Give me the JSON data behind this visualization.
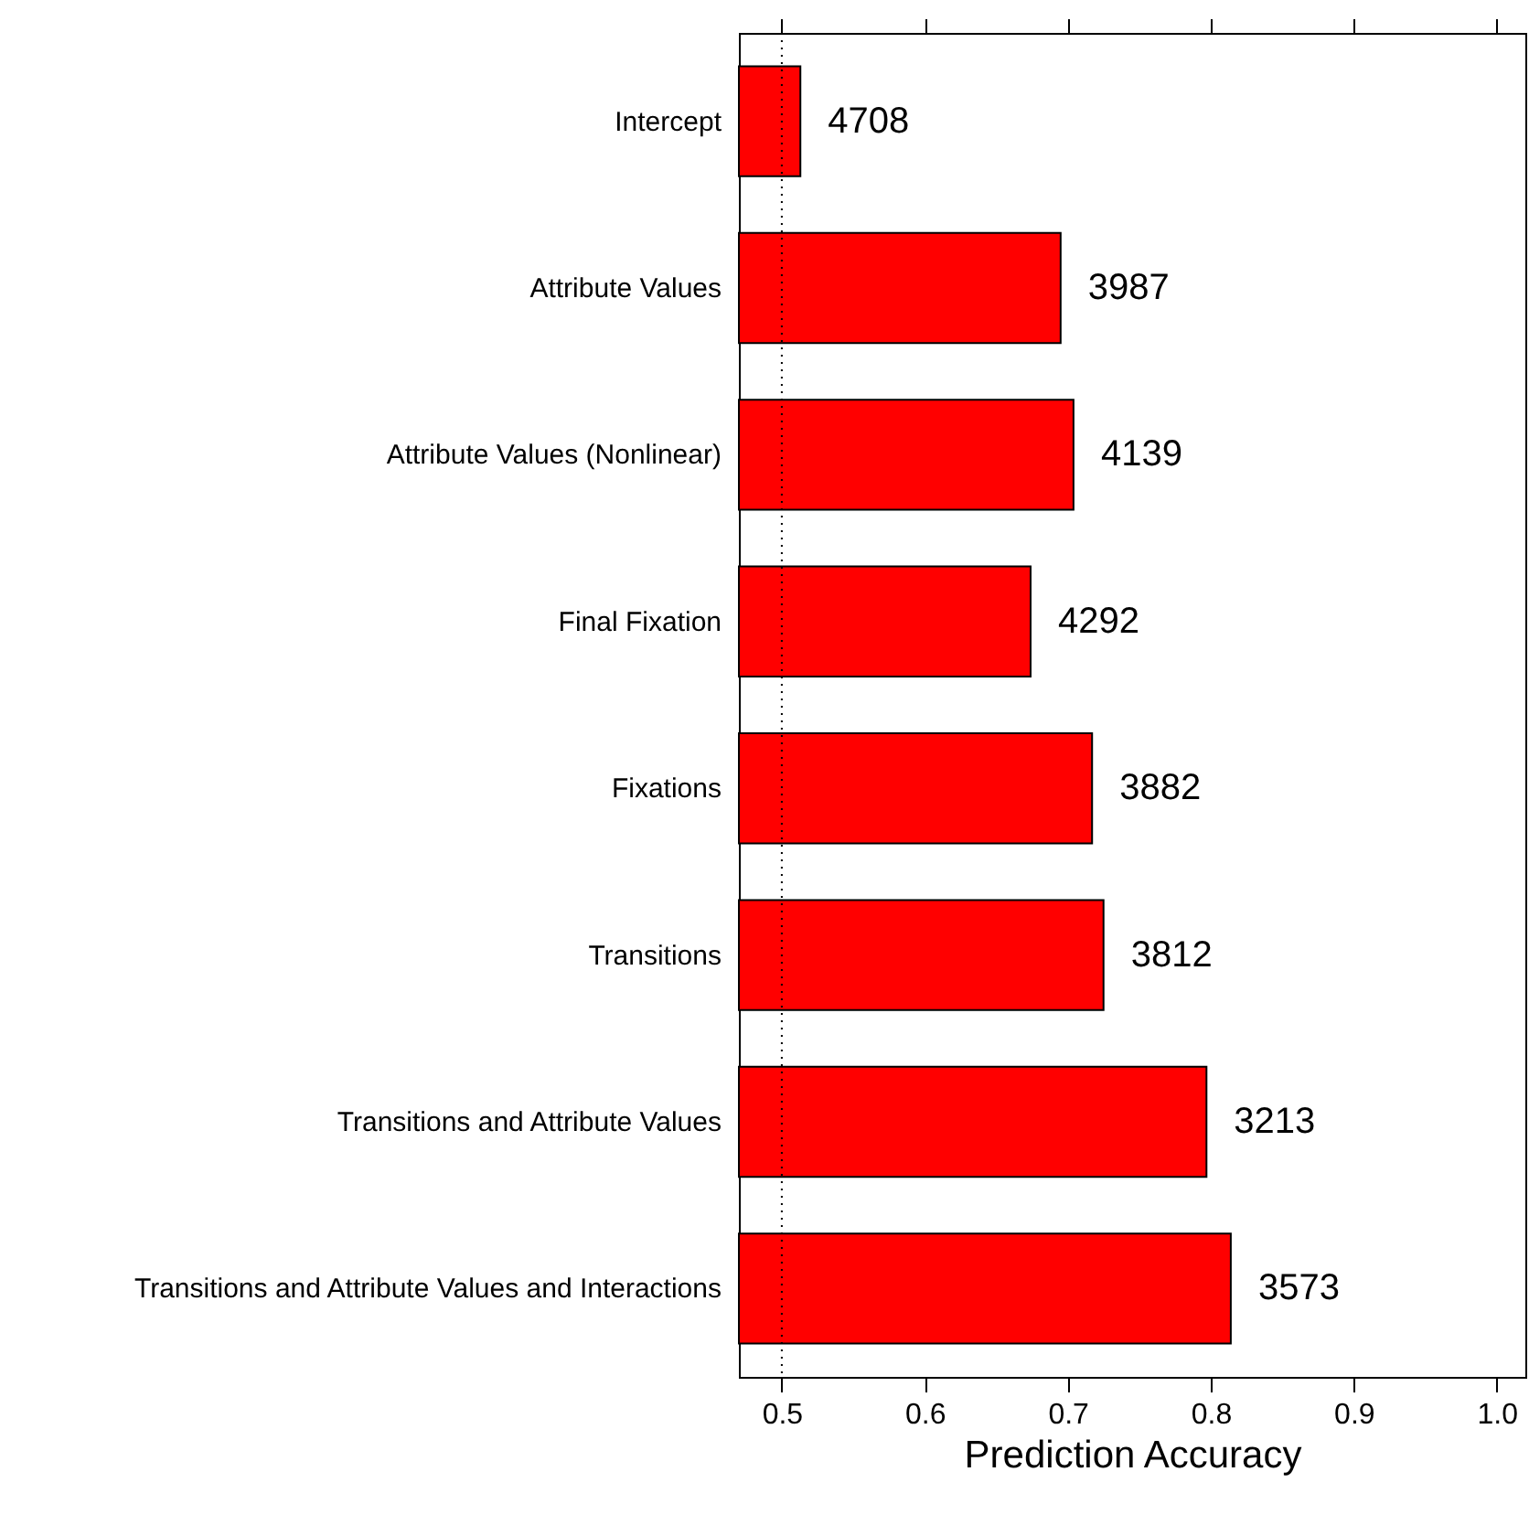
{
  "chart_data": {
    "type": "bar",
    "orientation": "horizontal",
    "xlabel": "Prediction Accuracy",
    "categories": [
      "Intercept",
      "Attribute Values",
      "Attribute Values (Nonlinear)",
      "Final Fixation",
      "Fixations",
      "Transitions",
      "Transitions and Attribute Values",
      "Transitions and Attribute Values and Interactions"
    ],
    "values": [
      0.513,
      0.695,
      0.704,
      0.674,
      0.717,
      0.725,
      0.797,
      0.814
    ],
    "annotations": [
      {
        "text": "4708",
        "x": 0.513,
        "y": "Intercept"
      },
      {
        "text": "3987",
        "x": 0.695,
        "y": "Attribute Values"
      },
      {
        "text": "4139",
        "x": 0.704,
        "y": "Attribute Values (Nonlinear)"
      },
      {
        "text": "4292",
        "x": 0.674,
        "y": "Final Fixation"
      },
      {
        "text": "3882",
        "x": 0.717,
        "y": "Fixations"
      },
      {
        "text": "3812",
        "x": 0.725,
        "y": "Transitions"
      },
      {
        "text": "3213",
        "x": 0.797,
        "y": "Transitions and Attribute Values"
      },
      {
        "text": "3573",
        "x": 0.814,
        "y": "Transitions and Attribute Values and Interactions"
      }
    ],
    "color": "#ff0000",
    "xlim": [
      0.47,
      1.02
    ],
    "xticks": [
      0.5,
      0.6,
      0.7,
      0.8,
      0.9,
      {
        "value": 1.0,
        "label": "1.0"
      }
    ],
    "ref_lines": [
      {
        "axis": "x",
        "value": 0.5,
        "line_style": "dotted",
        "color": "#000000"
      }
    ],
    "grid": false
  }
}
